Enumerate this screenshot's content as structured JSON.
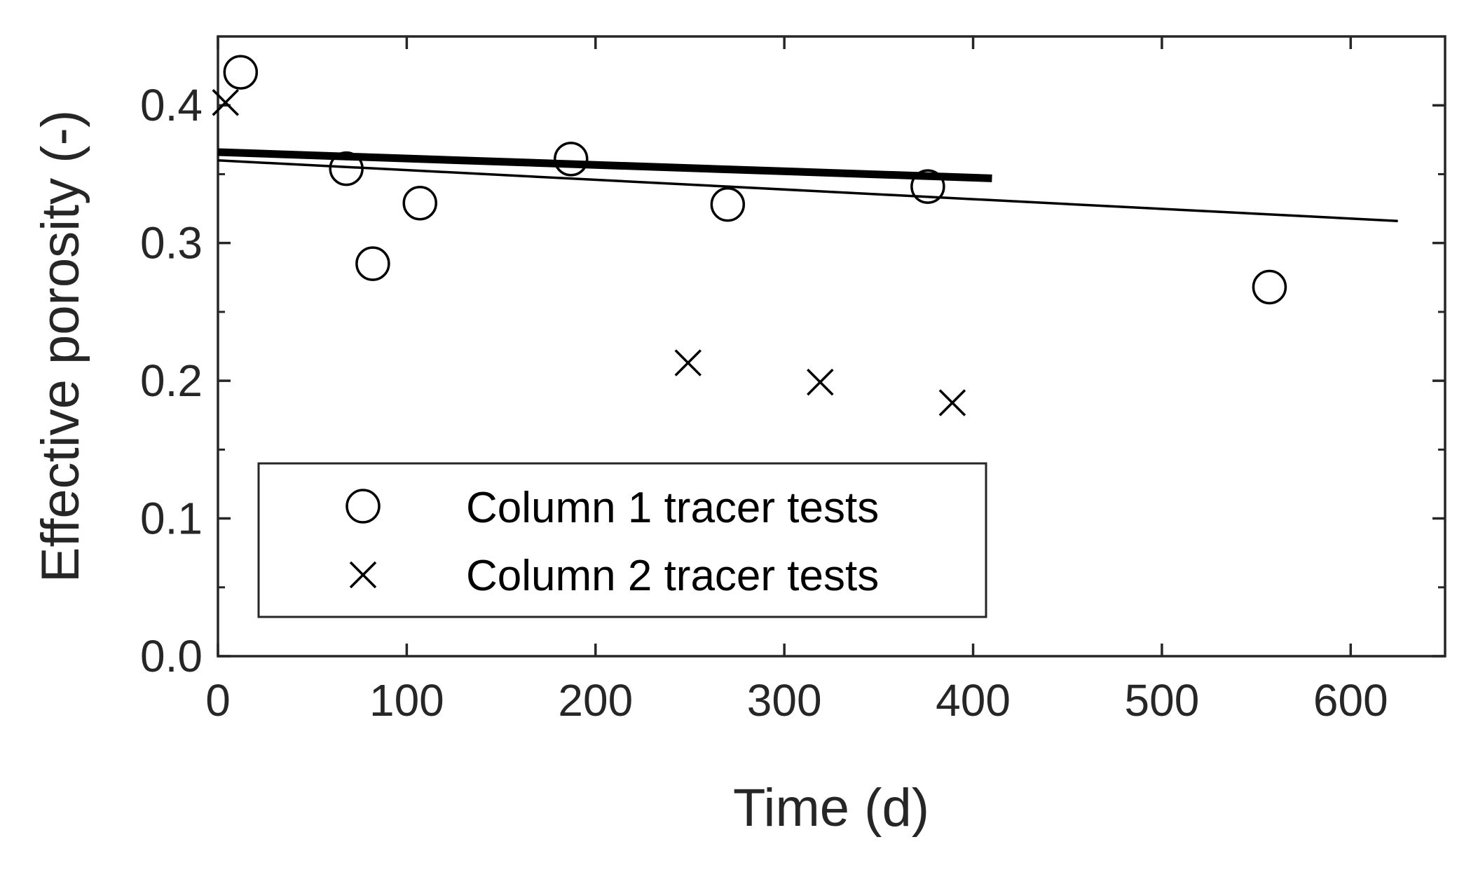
{
  "chart_data": {
    "type": "scatter",
    "xlabel": "Time (d)",
    "ylabel": "Effective porosity (-)",
    "xlim": [
      0,
      650
    ],
    "ylim": [
      0,
      0.45
    ],
    "x_ticks": [
      "0",
      "100",
      "200",
      "300",
      "400",
      "500",
      "600"
    ],
    "y_ticks": [
      "0.0",
      "0.1",
      "0.2",
      "0.3",
      "0.4"
    ],
    "x_tick_values": [
      0,
      100,
      200,
      300,
      400,
      500,
      600
    ],
    "y_tick_values": [
      0,
      0.1,
      0.2,
      0.3,
      0.4
    ],
    "grid": false,
    "legend_position": "bottom-left",
    "series": [
      {
        "name": "Column 1 tracer tests",
        "marker": "circle",
        "x": [
          12,
          68,
          82,
          107,
          187,
          270,
          376,
          557
        ],
        "y": [
          0.424,
          0.354,
          0.285,
          0.329,
          0.361,
          0.328,
          0.341,
          0.268
        ]
      },
      {
        "name": "Column 2 tracer tests",
        "marker": "cross",
        "x": [
          4,
          249,
          319,
          389
        ],
        "y": [
          0.402,
          0.213,
          0.199,
          0.184
        ]
      }
    ],
    "trend_lines": [
      {
        "style": "thick",
        "x": [
          0,
          410
        ],
        "y": [
          0.366,
          0.347
        ]
      },
      {
        "style": "thin",
        "x": [
          0,
          625
        ],
        "y": [
          0.36,
          0.316
        ]
      }
    ],
    "colors": {
      "axis": "#262626",
      "marks": "#000000",
      "background": "#ffffff"
    }
  }
}
